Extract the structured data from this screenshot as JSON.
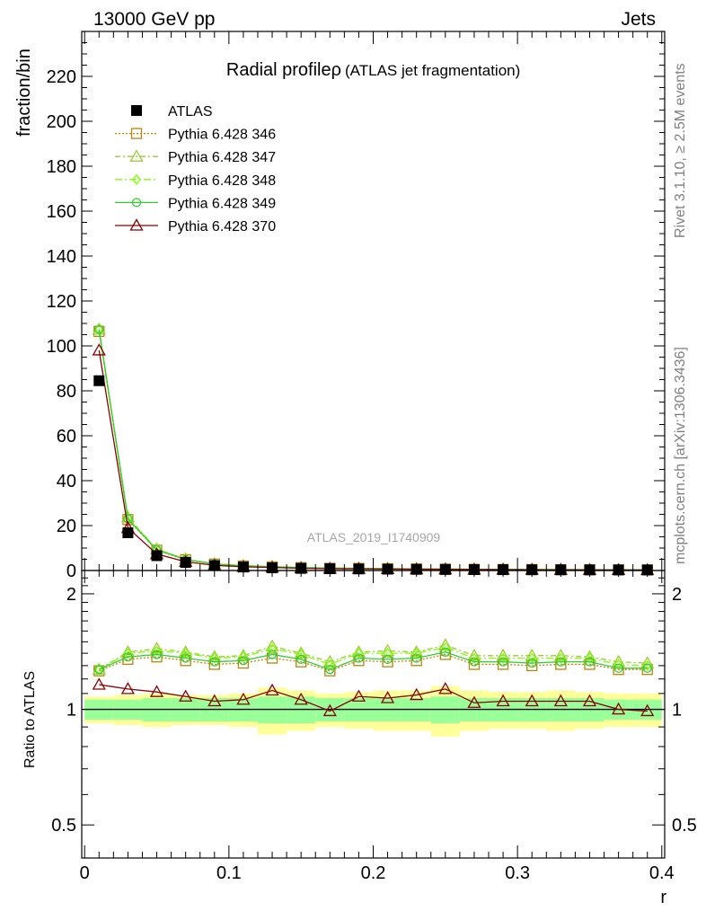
{
  "header": {
    "left": "13000 GeV pp",
    "right": "Jets"
  },
  "side_text": {
    "rivet": "Rivet 3.1.10, ≥ 2.5M events",
    "mcplots": "mcplots.cern.ch [arXiv:1306.3436]"
  },
  "chart_data": {
    "type": "line",
    "title": "Radial profileρ",
    "subtitle": "(ATLAS jet fragmentation)",
    "analysis_label": "ATLAS_2019_I1740909",
    "xlabel": "r",
    "ylabel": "fraction/bin",
    "ratio_ylabel": "Ratio to ATLAS",
    "xlim": [
      -0.002,
      0.402
    ],
    "ylim": [
      0,
      240
    ],
    "ratio_ylim": [
      0.41,
      2.3
    ],
    "x_ticks": [
      0,
      0.1,
      0.2,
      0.3,
      0.4
    ],
    "x_tick_labels": [
      "0",
      "0.1",
      "0.2",
      "0.3",
      "0.4"
    ],
    "y_ticks": [
      0,
      20,
      40,
      60,
      80,
      100,
      120,
      140,
      160,
      180,
      200,
      220
    ],
    "y_tick_labels": [
      "0",
      "20",
      "40",
      "60",
      "80",
      "100",
      "120",
      "140",
      "160",
      "180",
      "200",
      "220"
    ],
    "ratio_ticks": [
      0.5,
      1,
      2
    ],
    "ratio_tick_labels": [
      "0.5",
      "1",
      "2"
    ],
    "x": [
      0.01,
      0.03,
      0.05,
      0.07,
      0.09,
      0.11,
      0.13,
      0.15,
      0.17,
      0.19,
      0.21,
      0.23,
      0.25,
      0.27,
      0.29,
      0.31,
      0.33,
      0.35,
      0.37,
      0.39
    ],
    "bin_width": 0.02,
    "data": {
      "name": "ATLAS",
      "color": "#000000",
      "values": [
        84.5,
        16.8,
        6.6,
        3.6,
        2.2,
        1.55,
        1.2,
        0.95,
        0.8,
        0.7,
        0.6,
        0.52,
        0.46,
        0.41,
        0.37,
        0.33,
        0.3,
        0.27,
        0.25,
        0.23
      ]
    },
    "band_stat": [
      0.06,
      0.06,
      0.07,
      0.07,
      0.07,
      0.07,
      0.08,
      0.08,
      0.07,
      0.07,
      0.07,
      0.07,
      0.08,
      0.07,
      0.07,
      0.07,
      0.07,
      0.07,
      0.06,
      0.06
    ],
    "band_total": [
      0.08,
      0.09,
      0.1,
      0.09,
      0.09,
      0.1,
      0.14,
      0.12,
      0.1,
      0.11,
      0.12,
      0.12,
      0.15,
      0.12,
      0.11,
      0.11,
      0.12,
      0.11,
      0.1,
      0.1
    ],
    "band_colors": {
      "total": "#ffff99",
      "stat": "#99ff99"
    },
    "series": [
      {
        "name": "Pythia 6.428 346",
        "color": "#b8860b",
        "marker": "square",
        "dash": "2,2",
        "ratio": [
          1.26,
          1.35,
          1.37,
          1.34,
          1.31,
          1.32,
          1.36,
          1.33,
          1.26,
          1.34,
          1.33,
          1.34,
          1.39,
          1.31,
          1.31,
          1.3,
          1.31,
          1.31,
          1.27,
          1.27
        ]
      },
      {
        "name": "Pythia 6.428 347",
        "color": "#9acd32",
        "marker": "triangle",
        "dash": "6,3,2,3",
        "ratio": [
          1.27,
          1.41,
          1.44,
          1.41,
          1.37,
          1.38,
          1.46,
          1.4,
          1.33,
          1.41,
          1.42,
          1.41,
          1.47,
          1.38,
          1.38,
          1.38,
          1.38,
          1.37,
          1.33,
          1.32
        ]
      },
      {
        "name": "Pythia 6.428 348",
        "color": "#7fff00",
        "marker": "diamond",
        "dash": "8,3,2,3",
        "ratio": [
          1.27,
          1.4,
          1.42,
          1.4,
          1.36,
          1.37,
          1.44,
          1.39,
          1.31,
          1.4,
          1.4,
          1.4,
          1.45,
          1.36,
          1.36,
          1.36,
          1.36,
          1.36,
          1.31,
          1.3
        ]
      },
      {
        "name": "Pythia 6.428 349",
        "color": "#32cd32",
        "marker": "circle",
        "dash": "",
        "ratio": [
          1.27,
          1.37,
          1.39,
          1.36,
          1.33,
          1.34,
          1.39,
          1.35,
          1.27,
          1.36,
          1.35,
          1.36,
          1.41,
          1.33,
          1.33,
          1.32,
          1.33,
          1.33,
          1.28,
          1.28
        ]
      },
      {
        "name": "Pythia 6.428 370",
        "color": "#8b0000",
        "marker": "triangle",
        "dash": "",
        "ratio": [
          1.16,
          1.13,
          1.11,
          1.08,
          1.05,
          1.06,
          1.12,
          1.06,
          0.99,
          1.08,
          1.07,
          1.09,
          1.13,
          1.04,
          1.05,
          1.05,
          1.05,
          1.05,
          1.0,
          0.99
        ]
      }
    ]
  }
}
